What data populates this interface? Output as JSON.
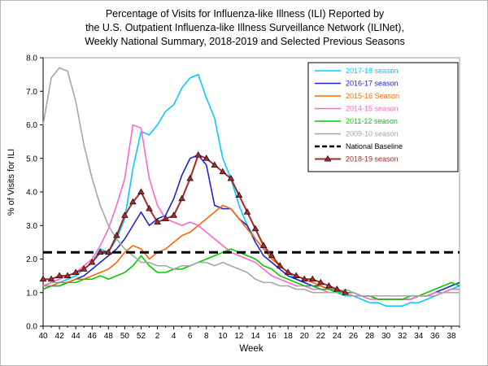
{
  "title": {
    "lines": [
      "Percentage of Visits for Influenza-like Illness (ILI) Reported by",
      "the U.S. Outpatient Influenza-like Illness Surveillance Network (ILINet),",
      "Weekly National Summary, 2018-2019 and Selected Previous Seasons"
    ]
  },
  "chart_data": {
    "type": "line",
    "title": "Percentage of Visits for Influenza-like Illness (ILI) Reported by the U.S. Outpatient Influenza-like Illness Surveillance Network (ILINet), Weekly National Summary, 2018-2019 and Selected Previous Seasons",
    "xlabel": "Week",
    "ylabel": "% of Visits for ILI",
    "ylim": [
      0,
      8
    ],
    "ytick_step": 1,
    "grid": false,
    "legend_position": "top-right",
    "x_labels": [
      "40",
      "41",
      "42",
      "43",
      "44",
      "45",
      "46",
      "47",
      "48",
      "49",
      "50",
      "51",
      "52",
      "1",
      "2",
      "3",
      "4",
      "5",
      "6",
      "7",
      "8",
      "9",
      "10",
      "11",
      "12",
      "13",
      "14",
      "15",
      "16",
      "17",
      "18",
      "19",
      "20",
      "21",
      "22",
      "23",
      "24",
      "25",
      "26",
      "27",
      "28",
      "29",
      "30",
      "31",
      "32",
      "33",
      "34",
      "35",
      "36",
      "37",
      "38",
      "39"
    ],
    "x_tick_every": 2,
    "baseline": {
      "label": "National Baseline",
      "value": 2.2,
      "color": "#000000",
      "dashed": true
    },
    "series": [
      {
        "name": "2017-18 season",
        "color": "#00CCFF",
        "marker": "none",
        "values": [
          1.2,
          1.3,
          1.3,
          1.4,
          1.5,
          1.7,
          1.9,
          2.3,
          2.2,
          2.6,
          3.2,
          4.7,
          5.8,
          5.7,
          6.0,
          6.4,
          6.6,
          7.1,
          7.4,
          7.5,
          6.8,
          6.2,
          5.0,
          4.4,
          3.6,
          3.0,
          2.6,
          2.3,
          2.1,
          1.8,
          1.6,
          1.4,
          1.3,
          1.2,
          1.1,
          1.1,
          1.0,
          0.9,
          0.9,
          0.8,
          0.7,
          0.7,
          0.6,
          0.6,
          0.6,
          0.7,
          0.7,
          0.8,
          0.9,
          1.0,
          1.1,
          1.2
        ]
      },
      {
        "name": "2016-17 season",
        "color": "#2222CC",
        "marker": "none",
        "values": [
          1.1,
          1.2,
          1.2,
          1.3,
          1.4,
          1.5,
          1.7,
          1.9,
          2.1,
          2.3,
          2.6,
          3.0,
          3.4,
          3.0,
          3.2,
          3.3,
          3.8,
          4.5,
          5.0,
          5.1,
          4.8,
          3.6,
          3.5,
          3.5,
          3.2,
          3.0,
          2.5,
          2.1,
          1.9,
          1.7,
          1.5,
          1.4,
          1.3,
          1.2,
          1.2,
          1.1,
          1.1,
          1.0,
          1.0,
          0.9,
          0.9,
          0.8,
          0.8,
          0.8,
          0.8,
          0.8,
          0.9,
          0.9,
          1.0,
          1.1,
          1.2,
          1.3
        ]
      },
      {
        "name": "2015-16 Season",
        "color": "#FF6600",
        "marker": "none",
        "values": [
          1.2,
          1.2,
          1.3,
          1.3,
          1.4,
          1.4,
          1.5,
          1.6,
          1.7,
          1.9,
          2.2,
          2.4,
          2.3,
          2.0,
          2.2,
          2.3,
          2.5,
          2.7,
          2.8,
          3.0,
          3.2,
          3.4,
          3.6,
          3.5,
          3.2,
          2.9,
          2.6,
          2.3,
          2.0,
          1.8,
          1.6,
          1.5,
          1.4,
          1.3,
          1.2,
          1.1,
          1.1,
          1.0,
          1.0,
          0.9,
          0.9,
          0.8,
          0.8,
          0.8,
          0.8,
          0.8,
          0.9,
          0.9,
          1.0,
          1.0,
          1.1,
          1.1
        ]
      },
      {
        "name": "2014-15 season",
        "color": "#FF66CC",
        "marker": "none",
        "values": [
          1.2,
          1.3,
          1.4,
          1.5,
          1.6,
          1.8,
          2.0,
          2.4,
          2.9,
          3.6,
          4.4,
          6.0,
          5.9,
          4.4,
          3.6,
          3.2,
          3.1,
          3.0,
          3.1,
          3.0,
          2.8,
          2.6,
          2.4,
          2.2,
          2.1,
          2.0,
          1.9,
          1.7,
          1.5,
          1.4,
          1.3,
          1.2,
          1.2,
          1.1,
          1.1,
          1.0,
          1.0,
          1.0,
          0.9,
          0.9,
          0.8,
          0.8,
          0.8,
          0.8,
          0.8,
          0.8,
          0.9,
          0.9,
          1.0,
          1.0,
          1.1,
          1.1
        ]
      },
      {
        "name": "2011-12 season",
        "color": "#00CC00",
        "marker": "none",
        "values": [
          1.1,
          1.2,
          1.2,
          1.3,
          1.3,
          1.4,
          1.4,
          1.5,
          1.4,
          1.5,
          1.6,
          1.8,
          2.1,
          1.8,
          1.6,
          1.6,
          1.7,
          1.7,
          1.8,
          1.9,
          2.0,
          2.1,
          2.2,
          2.3,
          2.2,
          2.1,
          2.0,
          1.8,
          1.7,
          1.5,
          1.4,
          1.3,
          1.2,
          1.2,
          1.1,
          1.1,
          1.0,
          1.0,
          1.0,
          0.9,
          0.9,
          0.8,
          0.8,
          0.8,
          0.8,
          0.9,
          0.9,
          1.0,
          1.1,
          1.2,
          1.3,
          1.2
        ]
      },
      {
        "name": "2009-10 season",
        "color": "#A6A6A6",
        "marker": "none",
        "values": [
          6.0,
          7.4,
          7.7,
          7.6,
          6.7,
          5.4,
          4.4,
          3.6,
          3.0,
          2.6,
          2.3,
          2.1,
          1.9,
          1.9,
          1.8,
          1.8,
          1.7,
          1.8,
          1.8,
          1.9,
          1.9,
          1.8,
          1.9,
          1.8,
          1.7,
          1.6,
          1.4,
          1.3,
          1.3,
          1.2,
          1.2,
          1.1,
          1.1,
          1.0,
          1.0,
          1.0,
          1.0,
          1.1,
          1.0,
          0.9,
          0.9,
          0.9,
          0.9,
          0.9,
          0.9,
          0.9,
          0.9,
          0.9,
          0.9,
          1.0,
          1.0,
          1.0
        ]
      },
      {
        "name": "2018-19 season",
        "color": "#A52A2A",
        "marker": "triangle",
        "values": [
          1.4,
          1.4,
          1.5,
          1.5,
          1.6,
          1.7,
          1.9,
          2.2,
          2.2,
          2.7,
          3.3,
          3.7,
          4.0,
          3.5,
          3.1,
          3.2,
          3.3,
          3.8,
          4.4,
          5.1,
          5.0,
          4.8,
          4.6,
          4.4,
          3.9,
          3.4,
          2.9,
          2.4,
          2.1,
          1.8,
          1.6,
          1.5,
          1.4,
          1.4,
          1.3,
          1.2,
          1.1,
          1.0
        ]
      }
    ],
    "legend_order": [
      "2017-18 season",
      "2016-17 season",
      "2015-16 Season",
      "2014-15 season",
      "2011-12 season",
      "2009-10 season",
      "National Baseline",
      "2018-19 season"
    ]
  }
}
